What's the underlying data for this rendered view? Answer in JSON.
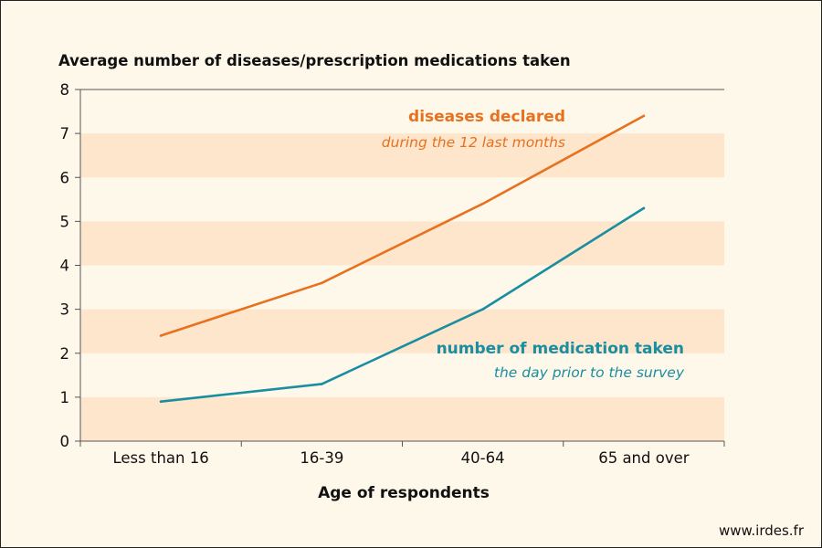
{
  "colors": {
    "background": "#FEF8EA",
    "band": "#FDE6CC",
    "diseases": "#E8711F",
    "medication": "#1A8EA1",
    "axis": "#555555",
    "text": "#111111"
  },
  "chart_data": {
    "type": "line",
    "title": "Average number of diseases/prescription medications taken",
    "xlabel": "Age of respondents",
    "ylabel": "",
    "categories": [
      "Less than 16",
      "16-39",
      "40-64",
      "65 and over"
    ],
    "ylim": [
      0,
      8
    ],
    "yticks": [
      0,
      1,
      2,
      3,
      4,
      5,
      6,
      7,
      8
    ],
    "grid": "alternating horizontal bands",
    "legend": "inline labels next to each line",
    "series": [
      {
        "key": "diseases",
        "label_main": "diseases declared",
        "label_sub": "during the 12 last months",
        "values": [
          2.4,
          3.6,
          5.4,
          7.4
        ]
      },
      {
        "key": "medication",
        "label_main": "number of medication taken",
        "label_sub": "the day prior to the survey",
        "values": [
          0.9,
          1.3,
          3.0,
          5.3
        ]
      }
    ]
  },
  "source": "www.irdes.fr"
}
